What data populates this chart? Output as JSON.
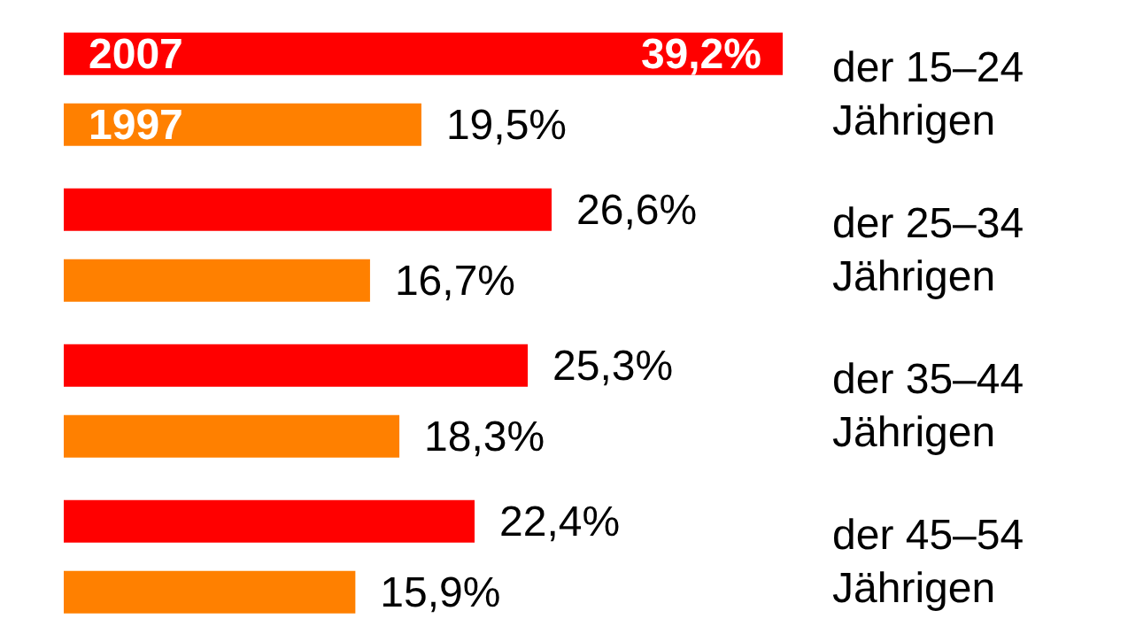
{
  "chart_data": {
    "type": "bar",
    "orientation": "horizontal",
    "categories": [
      "der 15–24 Jährigen",
      "der 25–34 Jährigen",
      "der 35–44 Jährigen",
      "der 45–54 Jährigen"
    ],
    "series": [
      {
        "name": "2007",
        "color": "#ff0000",
        "values": [
          39.2,
          26.6,
          25.3,
          22.4
        ],
        "value_labels": [
          "39,2%",
          "26,6%",
          "25,3%",
          "22,4%"
        ]
      },
      {
        "name": "1997",
        "color": "#ff8000",
        "values": [
          19.5,
          16.7,
          18.3,
          15.9
        ],
        "value_labels": [
          "19,5%",
          "16,7%",
          "18,3%",
          "15,9%"
        ]
      }
    ],
    "xlim": [
      0,
      39.2
    ],
    "legend": false,
    "tick_labels": "y"
  }
}
